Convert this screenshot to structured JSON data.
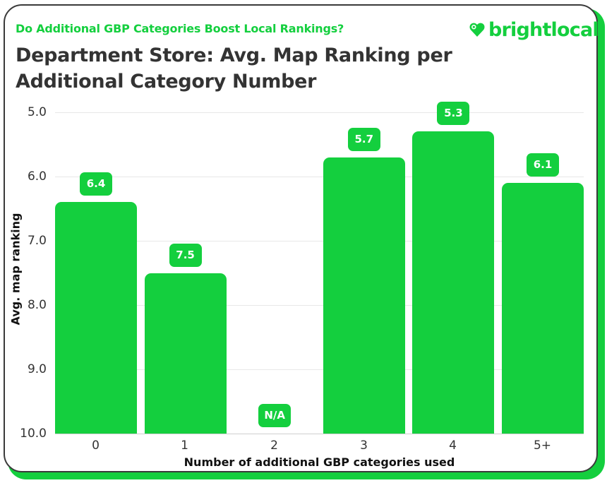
{
  "header": {
    "subtitle": "Do Additional GBP Categories Boost Local Rankings?",
    "title": "Department Store: Avg. Map Ranking per Additional Category Number",
    "logo_text": "brightlocal",
    "logo_icon": "heart-pin-icon"
  },
  "colors": {
    "accent": "#14cf3e",
    "title": "#333333",
    "border": "#3a3a3a"
  },
  "axes": {
    "y_ticks": [
      "5.0",
      "6.0",
      "7.0",
      "8.0",
      "9.0",
      "10.0"
    ],
    "y_title": "Avg. map ranking",
    "x_ticks": [
      "0",
      "1",
      "2",
      "3",
      "4",
      "5+"
    ],
    "x_title": "Number of additional GBP categories used"
  },
  "bars": [
    {
      "label": "6.4"
    },
    {
      "label": "7.5"
    },
    {
      "label": "N/A"
    },
    {
      "label": "5.7"
    },
    {
      "label": "5.3"
    },
    {
      "label": "6.1"
    }
  ],
  "chart_data": {
    "type": "bar",
    "title": "Department Store: Avg. Map Ranking per Additional Category Number",
    "subtitle": "Do Additional GBP Categories Boost Local Rankings?",
    "categories": [
      "0",
      "1",
      "2",
      "3",
      "4",
      "5+"
    ],
    "values": [
      6.4,
      7.5,
      null,
      5.7,
      5.3,
      6.1
    ],
    "data_labels": [
      "6.4",
      "7.5",
      "N/A",
      "5.7",
      "5.3",
      "6.1"
    ],
    "xlabel": "Number of additional GBP categories used",
    "ylabel": "Avg. map ranking",
    "ylim": [
      10.0,
      5.0
    ],
    "y_axis_inverted": true,
    "y_ticks": [
      5.0,
      6.0,
      7.0,
      8.0,
      9.0,
      10.0
    ],
    "grid": true,
    "legend": null
  }
}
